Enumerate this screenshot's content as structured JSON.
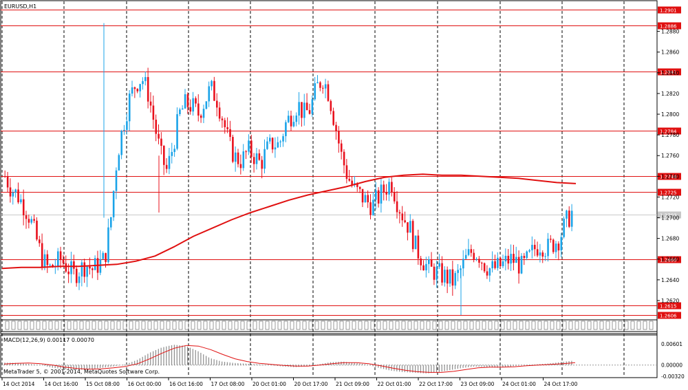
{
  "window": {
    "symbol_title": "EURUSD,H1",
    "macd_label": "MACD(12,26,9) 0.00117 0.00070",
    "copyright": "MetaTrader 5, © 2001-2014, MetaQuotes Software Corp."
  },
  "colors": {
    "background": "#ffffff",
    "bull": "#1aa3e8",
    "bear": "#e8101c",
    "level": "#e01010",
    "ma": "#e01010",
    "macd_hist": "#8a8a8a",
    "macd_signal": "#e01010",
    "grid": "#000000"
  },
  "chart_data": [
    {
      "type": "candlestick",
      "title": "EURUSD,H1",
      "ylim": [
        1.2606,
        1.2908
      ],
      "price_ticks": [
        "1.2880",
        "1.2860",
        "1.2840",
        "1.2820",
        "1.2800",
        "1.2780",
        "1.2760",
        "1.2740",
        "1.2720",
        "1.2700",
        "1.2680",
        "1.2660",
        "1.2640",
        "1.2620"
      ],
      "levels": [
        {
          "value": 1.2901,
          "label": "1.2901",
          "style": "red"
        },
        {
          "value": 1.2886,
          "label": "1.2886",
          "style": "red"
        },
        {
          "value": 1.2841,
          "label": "1.2841",
          "style": "red"
        },
        {
          "value": 1.2784,
          "label": "1.2784",
          "style": "red"
        },
        {
          "value": 1.274,
          "label": "1.2740",
          "style": "red"
        },
        {
          "value": 1.2725,
          "label": "1.2725",
          "style": "red"
        },
        {
          "value": 1.2703,
          "label": "1.2703",
          "style": "current"
        },
        {
          "value": 1.266,
          "label": "1.2660",
          "style": "red"
        },
        {
          "value": 1.2615,
          "label": "1.2615",
          "style": "red"
        },
        {
          "value": 1.2606,
          "label": "1.2606",
          "style": "red"
        }
      ],
      "date_labels": [
        "14 Oct 2014",
        "14 Oct 16:00",
        "15 Oct 08:00",
        "16 Oct 00:00",
        "16 Oct 16:00",
        "17 Oct 08:00",
        "20 Oct 01:00",
        "20 Oct 17:00",
        "21 Oct 09:00",
        "22 Oct 01:00",
        "22 Oct 17:00",
        "23 Oct 09:00",
        "24 Oct 01:00",
        "24 Oct 17:00"
      ],
      "close_path": [
        1.274,
        1.2728,
        1.2722,
        1.2712,
        1.27,
        1.268,
        1.266,
        1.265,
        1.2655,
        1.266,
        1.2652,
        1.2645,
        1.265,
        1.2655,
        1.265,
        1.2655,
        1.266,
        1.27,
        1.276,
        1.279,
        1.2815,
        1.283,
        1.2835,
        1.282,
        1.279,
        1.276,
        1.2745,
        1.277,
        1.28,
        1.281,
        1.2808,
        1.28,
        1.2812,
        1.2825,
        1.2815,
        1.2795,
        1.277,
        1.2758,
        1.2755,
        1.2765,
        1.276,
        1.2752,
        1.2765,
        1.2772,
        1.277,
        1.279,
        1.28,
        1.281,
        1.28,
        1.2805,
        1.2825,
        1.2835,
        1.282,
        1.279,
        1.276,
        1.274,
        1.2728,
        1.2722,
        1.2716,
        1.2712,
        1.272,
        1.2728,
        1.2735,
        1.2715,
        1.27,
        1.269,
        1.267,
        1.266,
        1.265,
        1.2648,
        1.2645,
        1.2642,
        1.2638,
        1.2648,
        1.266,
        1.2668,
        1.2665,
        1.2655,
        1.265,
        1.2652,
        1.2655,
        1.266,
        1.2658,
        1.2652,
        1.266,
        1.267,
        1.2675,
        1.267,
        1.2675,
        1.268,
        1.2695,
        1.2705
      ],
      "ma_path": [
        1.2651,
        1.2652,
        1.2652,
        1.2653,
        1.2653,
        1.2654,
        1.2655,
        1.2658,
        1.2663,
        1.2672,
        1.2682,
        1.269,
        1.2698,
        1.2705,
        1.2711,
        1.2717,
        1.2722,
        1.2726,
        1.273,
        1.2735,
        1.2739,
        1.2741,
        1.2742,
        1.2741,
        1.2741,
        1.274,
        1.2739,
        1.2738,
        1.2736,
        1.2734,
        1.2733
      ],
      "macd_ylim": [
        -0.0032,
        0.008
      ],
      "macd_ticks": [
        "0.00601",
        "0.00000",
        "-0.00320"
      ],
      "macd_hist": [
        0.0007,
        0.0006,
        0.0003,
        0.0,
        -0.0008,
        -0.0012,
        -0.0014,
        -0.0012,
        -0.0008,
        -0.0004,
        0.0002,
        0.0015,
        0.0035,
        0.005,
        0.0058,
        0.0055,
        0.004,
        0.002,
        0.001,
        0.0006,
        0.0004,
        0.0002,
        0.0,
        -0.0004,
        -0.0006,
        -0.0004,
        0.0002,
        0.0008,
        0.001,
        0.0006,
        0.0002,
        -0.0008,
        -0.0016,
        -0.002,
        -0.0022,
        -0.0024,
        -0.002,
        -0.0014,
        -0.0008,
        -0.0004,
        -0.0006,
        -0.0008,
        -0.0004,
        0.0,
        0.0002,
        0.0004,
        0.0008,
        0.0012
      ],
      "macd_signal": [
        0.0003,
        0.0005,
        0.0006,
        0.0004,
        0.0,
        -0.0006,
        -0.001,
        -0.0012,
        -0.0011,
        -0.0008,
        -0.0004,
        0.0004,
        0.0018,
        0.0034,
        0.0048,
        0.0056,
        0.0054,
        0.0044,
        0.003,
        0.0018,
        0.001,
        0.0005,
        0.0002,
        -0.0001,
        -0.0003,
        -0.0003,
        0.0,
        0.0004,
        0.0007,
        0.0007,
        0.0004,
        -0.0002,
        -0.0009,
        -0.0015,
        -0.0019,
        -0.0021,
        -0.0021,
        -0.0018,
        -0.0013,
        -0.0008,
        -0.0006,
        -0.0006,
        -0.0005,
        -0.0002,
        0.0,
        0.0002,
        0.0004,
        0.0007
      ]
    }
  ]
}
